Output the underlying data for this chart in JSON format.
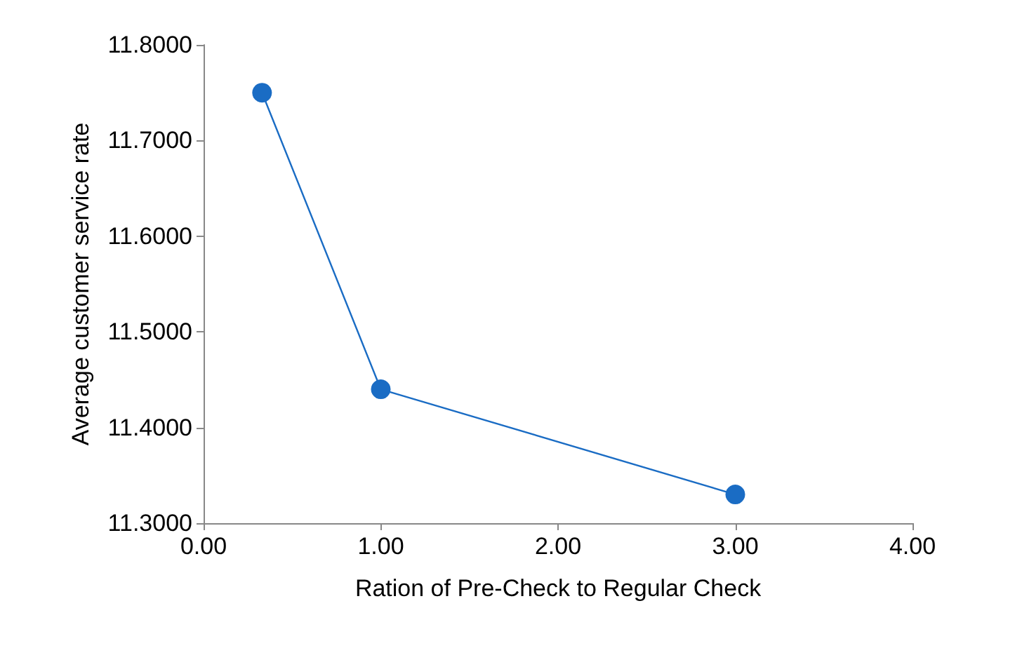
{
  "chart_data": {
    "type": "line",
    "xlabel": "Ration of Pre-Check to Regular Check",
    "ylabel": "Average customer service rate",
    "x": [
      0.33,
      1,
      3
    ],
    "series": [
      {
        "color": "#1a6cc4",
        "values": [
          11.75,
          11.44,
          11.33
        ]
      }
    ],
    "xlim": [
      0,
      4
    ],
    "xticks": [
      {
        "value": 0,
        "label": "0.00"
      },
      {
        "value": 1,
        "label": "1.00"
      },
      {
        "value": 2,
        "label": "2.00"
      },
      {
        "value": 3,
        "label": "3.00"
      },
      {
        "value": 4,
        "label": "4.00"
      }
    ],
    "ylim": [
      11.3,
      11.8
    ],
    "yticks": [
      {
        "value": 11.3,
        "label": "11.3000"
      },
      {
        "value": 11.4,
        "label": "11.4000"
      },
      {
        "value": 11.5,
        "label": "11.5000"
      },
      {
        "value": 11.6,
        "label": "11.6000"
      },
      {
        "value": 11.7,
        "label": "11.7000"
      },
      {
        "value": 11.8,
        "label": "11.8000"
      }
    ],
    "marker": "circle",
    "line_style": "solid"
  }
}
